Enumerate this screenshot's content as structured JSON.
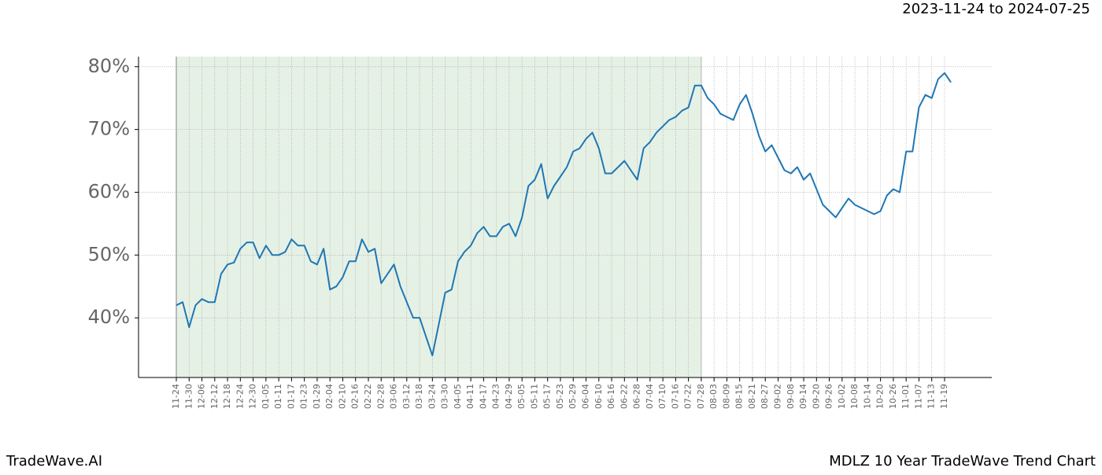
{
  "chart_data": {
    "type": "line",
    "title": "2023-11-24 to 2024-07-25",
    "footer_left": "TradeWave.AI",
    "footer_right": "MDLZ 10 Year TradeWave Trend Chart",
    "categories": [
      "11-24",
      null,
      "11-30",
      null,
      "12-06",
      null,
      "12-12",
      null,
      "12-18",
      null,
      "12-24",
      null,
      "12-30",
      null,
      "01-05",
      null,
      "01-11",
      null,
      "01-17",
      null,
      "01-23",
      null,
      "01-29",
      null,
      "02-04",
      null,
      "02-10",
      null,
      "02-16",
      null,
      "02-22",
      null,
      "02-28",
      null,
      "03-06",
      null,
      "03-12",
      null,
      "03-18",
      null,
      "03-24",
      null,
      "03-30",
      null,
      "04-05",
      null,
      "04-11",
      null,
      "04-17",
      null,
      "04-23",
      null,
      "04-29",
      null,
      "05-05",
      null,
      "05-11",
      null,
      "05-17",
      null,
      "05-23",
      null,
      "05-29",
      null,
      "06-04",
      null,
      "06-10",
      null,
      "06-16",
      null,
      "06-22",
      null,
      "06-28",
      null,
      "07-04",
      null,
      "07-10",
      null,
      "07-16",
      null,
      "07-22",
      null,
      "07-28",
      null,
      "08-03",
      null,
      "08-09",
      null,
      "08-15",
      null,
      "08-21",
      null,
      "08-27",
      null,
      "09-02",
      null,
      "09-08",
      null,
      "09-14",
      null,
      "09-20",
      null,
      "09-26",
      null,
      "10-02",
      null,
      "10-08",
      null,
      "10-14",
      null,
      "10-20",
      null,
      "10-26",
      null,
      "11-01",
      null,
      "11-07",
      null,
      "11-13",
      null,
      "11-19",
      null
    ],
    "values": [
      42,
      42.5,
      38.5,
      42,
      43,
      42.5,
      42.5,
      47,
      48.5,
      48.8,
      51,
      52,
      52,
      49.5,
      51.5,
      50,
      50,
      50.5,
      52.5,
      51.5,
      51.5,
      49,
      48.5,
      51,
      44.5,
      45,
      46.5,
      49,
      49,
      52.5,
      50.5,
      51,
      45.5,
      47,
      48.5,
      45,
      42.5,
      40,
      40,
      37,
      34,
      39,
      44,
      44.5,
      49,
      50.5,
      51.5,
      53.5,
      54.5,
      53,
      53,
      54.5,
      55,
      53,
      56,
      61,
      62,
      64.5,
      59,
      61,
      62.5,
      64,
      66.5,
      67,
      68.5,
      69.5,
      67,
      63,
      63,
      64,
      65,
      63.5,
      62,
      67,
      68,
      69.5,
      70.5,
      71.5,
      72,
      73,
      73.5,
      77,
      77,
      75,
      74,
      72.5,
      72,
      71.5,
      74,
      75.5,
      72.5,
      69,
      66.5,
      67.5,
      65.5,
      63.5,
      63,
      64,
      62,
      63,
      60.5,
      58,
      57,
      56,
      57.5,
      59,
      58,
      57.5,
      57,
      56.5,
      57,
      59.5,
      60.5,
      60,
      66.5,
      66.5,
      73.5,
      75.5,
      75,
      78,
      79,
      77.5
    ],
    "color": "#1f77b4",
    "ylim": [
      30.5,
      81.6
    ],
    "yticks": [
      {
        "value": 40,
        "label": "40%"
      },
      {
        "value": 50,
        "label": "50%"
      },
      {
        "value": 60,
        "label": "60%"
      },
      {
        "value": 70,
        "label": "70%"
      },
      {
        "value": 80,
        "label": "80%"
      }
    ],
    "grid": true,
    "shade": {
      "from": "11-24",
      "to": "07-28",
      "color": "#e6f1e6"
    }
  }
}
